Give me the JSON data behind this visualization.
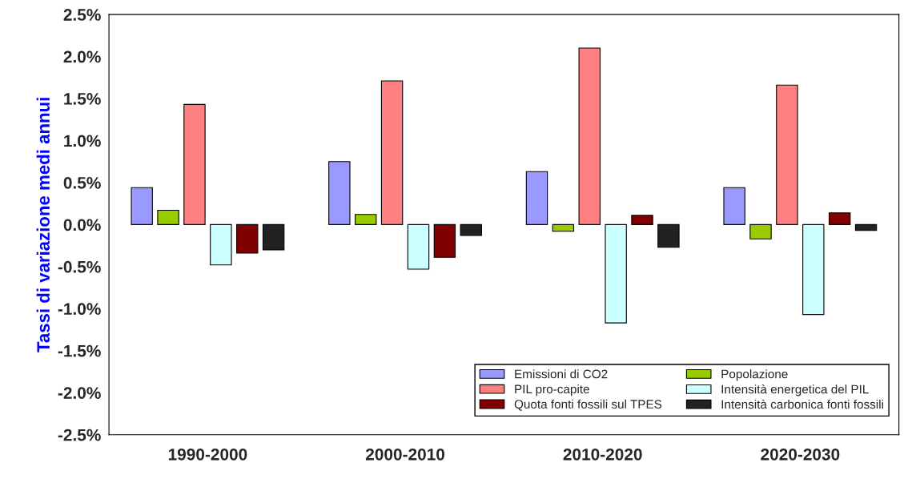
{
  "chart_data": {
    "type": "bar",
    "ylabel": "Tassi di variazione medi annui",
    "categories": [
      "1990-2000",
      "2000-2010",
      "2010-2020",
      "2020-2030"
    ],
    "series": [
      {
        "name": "Emissioni di CO2",
        "color": "#9999ff",
        "values": [
          0.44,
          0.75,
          0.63,
          0.44
        ]
      },
      {
        "name": "Popolazione",
        "color": "#99cc00",
        "values": [
          0.17,
          0.12,
          -0.08,
          -0.17
        ]
      },
      {
        "name": "PIL pro-capite",
        "color": "#ff8080",
        "values": [
          1.43,
          1.71,
          2.1,
          1.66
        ]
      },
      {
        "name": "Intensità energetica del PIL",
        "color": "#ccffff",
        "values": [
          -0.48,
          -0.53,
          -1.17,
          -1.07
        ]
      },
      {
        "name": "Quota fonti fossili sul TPES",
        "color": "#800000",
        "values": [
          -0.34,
          -0.39,
          0.11,
          0.14
        ]
      },
      {
        "name": "Intensità carbonica fonti fossili",
        "color": "#222222",
        "values": [
          -0.3,
          -0.13,
          -0.27,
          -0.07
        ]
      }
    ],
    "ylim": [
      -2.5,
      2.5
    ],
    "yticks": [
      {
        "value": -2.5,
        "label": "-2.5%"
      },
      {
        "value": -2.0,
        "label": "-2.0%"
      },
      {
        "value": -1.5,
        "label": "-1.5%"
      },
      {
        "value": -1.0,
        "label": "-1.0%"
      },
      {
        "value": -0.5,
        "label": "-0.5%"
      },
      {
        "value": 0,
        "label": "0.0%"
      },
      {
        "value": 0.5,
        "label": "0.5%"
      },
      {
        "value": 1.0,
        "label": "1.0%"
      },
      {
        "value": 1.5,
        "label": "1.5%"
      },
      {
        "value": 2.0,
        "label": "2.0%"
      },
      {
        "value": 2.5,
        "label": "2.5%"
      }
    ],
    "legend": "bottom right",
    "grid": false
  }
}
